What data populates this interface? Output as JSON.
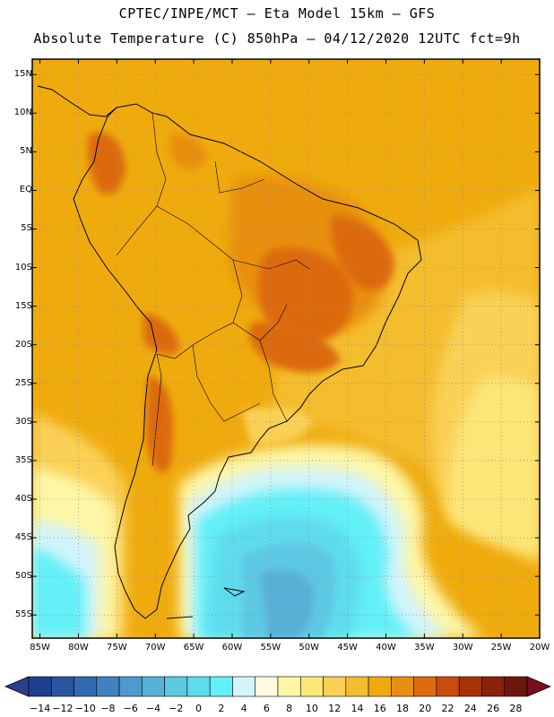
{
  "header": {
    "line1": "CPTEC/INPE/MCT –  Eta Model 15km – GFS",
    "line2": "Absolute Temperature (C) 850hPa – 04/12/2020 12UTC fct=9h"
  },
  "map": {
    "lat_labels": [
      "15N",
      "10N",
      "5N",
      "EQ",
      "5S",
      "10S",
      "15S",
      "20S",
      "25S",
      "30S",
      "35S",
      "40S",
      "45S",
      "50S",
      "55S"
    ],
    "lon_labels": [
      "85W",
      "80W",
      "75W",
      "70W",
      "65W",
      "60W",
      "55W",
      "50W",
      "45W",
      "40W",
      "35W",
      "30W",
      "25W",
      "20W"
    ],
    "lat_range": [
      -58,
      17
    ],
    "lon_range": [
      -86,
      -20
    ]
  },
  "colorbar": {
    "labels": [
      "−14",
      "−12",
      "−10",
      "−8",
      "−6",
      "−4",
      "−2",
      "0",
      "2",
      "4",
      "6",
      "8",
      "10",
      "12",
      "14",
      "16",
      "18",
      "20",
      "22",
      "24",
      "26",
      "28"
    ],
    "colors": [
      "#1f3e8e",
      "#2a55a0",
      "#336aaf",
      "#3f82bf",
      "#4d9acc",
      "#58b1d6",
      "#5dc8e3",
      "#5fdcec",
      "#63f0f7",
      "#d2f4fb",
      "#fffae2",
      "#fdf6a6",
      "#fce678",
      "#fad157",
      "#f4bd2f",
      "#efab0e",
      "#e88f10",
      "#dc6a0f",
      "#c84c0d",
      "#a83309",
      "#8b2109",
      "#70170b"
    ],
    "low_color": "#2a3f8f",
    "high_color": "#7a0e1e"
  }
}
